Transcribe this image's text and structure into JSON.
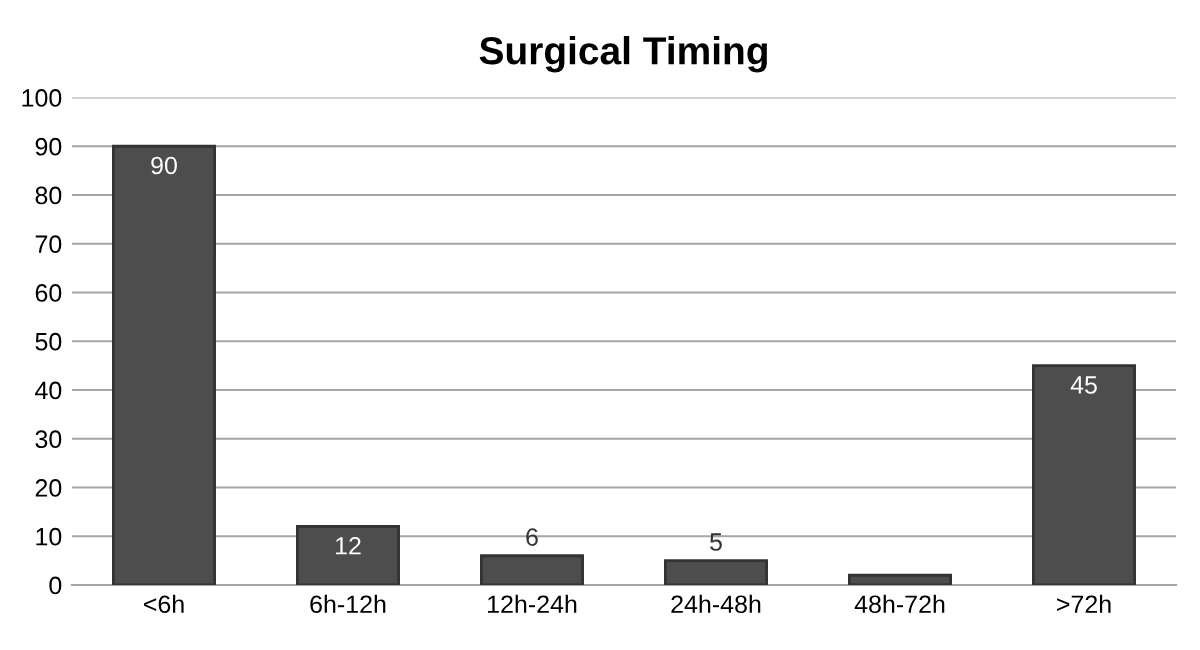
{
  "chart_data": {
    "type": "bar",
    "title": "Surgical Timing",
    "categories": [
      "<6h",
      "6h-12h",
      "12h-24h",
      "24h-48h",
      "48h-72h",
      ">72h"
    ],
    "values": [
      90,
      12,
      6,
      5,
      2,
      45
    ],
    "value_labels": [
      "90",
      "12",
      "6",
      "5",
      null,
      "45"
    ],
    "color": "#4d4d4d",
    "ylim": [
      0,
      100
    ],
    "yticks": [
      0,
      10,
      20,
      30,
      40,
      50,
      60,
      70,
      80,
      90,
      100
    ],
    "grid": "y",
    "legend": false
  }
}
